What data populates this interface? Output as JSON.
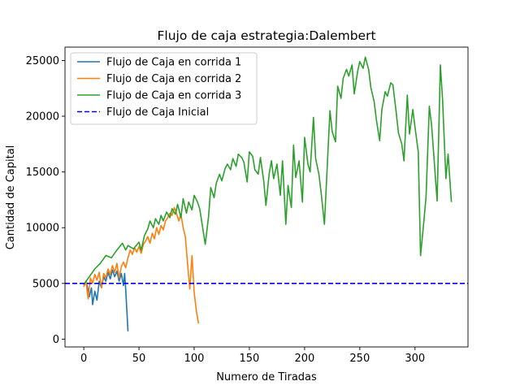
{
  "chart_data": {
    "type": "line",
    "title": "Flujo de caja estrategia:Dalembert",
    "xlabel": "Numero de Tiradas",
    "ylabel": "Cantidad de Capital",
    "xlim": [
      -17,
      348
    ],
    "ylim": [
      -700,
      26200
    ],
    "xticks": [
      0,
      50,
      100,
      150,
      200,
      250,
      300
    ],
    "yticks": [
      0,
      5000,
      10000,
      15000,
      20000,
      25000
    ],
    "grid": false,
    "legend_position": "top-left",
    "series": [
      {
        "name": "Flujo de Caja en corrida 1",
        "color": "#1f77b4",
        "style": "solid",
        "x": [
          0,
          2,
          4,
          5,
          7,
          8,
          10,
          12,
          14,
          16,
          18,
          20,
          22,
          24,
          26,
          28,
          30,
          32,
          34,
          36,
          37,
          38,
          40
        ],
        "y": [
          4800,
          5200,
          4400,
          3800,
          4600,
          3100,
          4300,
          3500,
          5200,
          4600,
          5600,
          5200,
          6000,
          5400,
          6200,
          5600,
          6100,
          5200,
          5900,
          4800,
          5900,
          4500,
          700
        ]
      },
      {
        "name": "Flujo de Caja en corrida 2",
        "color": "#ff7f0e",
        "style": "solid",
        "x": [
          0,
          2,
          4,
          6,
          8,
          10,
          12,
          14,
          16,
          18,
          20,
          22,
          24,
          26,
          28,
          30,
          32,
          34,
          36,
          38,
          40,
          42,
          44,
          46,
          48,
          50,
          52,
          54,
          56,
          58,
          60,
          62,
          64,
          66,
          68,
          70,
          72,
          74,
          76,
          78,
          80,
          82,
          84,
          86,
          88,
          90,
          92,
          94,
          96,
          98,
          100,
          102,
          104
        ],
        "y": [
          4700,
          5200,
          3600,
          5500,
          5000,
          5800,
          5300,
          6000,
          4600,
          5900,
          5500,
          6300,
          5800,
          6600,
          6000,
          6800,
          5500,
          6500,
          6900,
          6400,
          7300,
          8000,
          7600,
          8200,
          7800,
          8300,
          7700,
          8500,
          8800,
          9200,
          8600,
          9500,
          9000,
          10000,
          9400,
          10200,
          9800,
          10600,
          10900,
          11300,
          11100,
          11800,
          11300,
          10600,
          11200,
          10000,
          9200,
          6800,
          4500,
          7500,
          4200,
          2500,
          1400
        ]
      },
      {
        "name": "Flujo de Caja en corrida 3",
        "color": "#2ca02c",
        "style": "solid",
        "x": [
          0,
          5,
          10,
          15,
          20,
          25,
          30,
          35,
          38,
          40,
          45,
          50,
          52,
          55,
          58,
          60,
          63,
          65,
          68,
          70,
          72,
          75,
          78,
          80,
          83,
          85,
          88,
          90,
          93,
          95,
          98,
          100,
          103,
          105,
          108,
          110,
          113,
          115,
          118,
          120,
          123,
          125,
          128,
          130,
          133,
          135,
          138,
          140,
          143,
          145,
          148,
          150,
          153,
          155,
          158,
          160,
          163,
          165,
          168,
          170,
          172,
          175,
          178,
          180,
          183,
          185,
          188,
          190,
          192,
          195,
          198,
          200,
          203,
          205,
          208,
          210,
          213,
          215,
          218,
          220,
          223,
          225,
          228,
          230,
          233,
          235,
          238,
          240,
          243,
          245,
          248,
          250,
          253,
          255,
          258,
          260,
          263,
          265,
          268,
          270,
          273,
          275,
          278,
          280,
          283,
          285,
          288,
          290,
          293,
          295,
          298,
          300,
          303,
          305,
          308,
          310,
          313,
          315,
          318,
          320,
          323,
          325,
          328,
          330,
          333
        ],
        "y": [
          4900,
          5600,
          6300,
          6800,
          7500,
          7300,
          8000,
          8600,
          8000,
          8400,
          8100,
          8700,
          8000,
          9300,
          9900,
          10600,
          10000,
          10800,
          10300,
          11100,
          10600,
          11400,
          10900,
          11700,
          11200,
          12100,
          10900,
          12600,
          11300,
          12300,
          11600,
          12900,
          12300,
          11700,
          9800,
          8500,
          11000,
          13600,
          12700,
          14000,
          14800,
          14200,
          15300,
          15700,
          15200,
          16200,
          15500,
          16600,
          16300,
          15900,
          14100,
          16800,
          16400,
          15200,
          14800,
          16300,
          14200,
          12000,
          14900,
          16000,
          14400,
          15700,
          12900,
          16000,
          10300,
          13800,
          11800,
          17400,
          14500,
          16000,
          12300,
          18100,
          15700,
          15000,
          19900,
          16200,
          14800,
          13100,
          10300,
          14500,
          20500,
          18600,
          17700,
          22700,
          21600,
          23400,
          24200,
          23600,
          24600,
          22000,
          24000,
          24900,
          24300,
          25300,
          24200,
          22600,
          21300,
          19700,
          17800,
          20600,
          22200,
          21800,
          23000,
          22800,
          20300,
          18500,
          17500,
          16000,
          21900,
          18400,
          20600,
          19000,
          16800,
          7500,
          10500,
          12800,
          20900,
          19200,
          15200,
          12400,
          24600,
          21500,
          14400,
          16600,
          12300
        ]
      },
      {
        "name": "Flujo de Caja Inicial",
        "color": "#0000ff",
        "style": "dashed",
        "x": [
          -17,
          348
        ],
        "y": [
          5000,
          5000
        ]
      }
    ]
  }
}
